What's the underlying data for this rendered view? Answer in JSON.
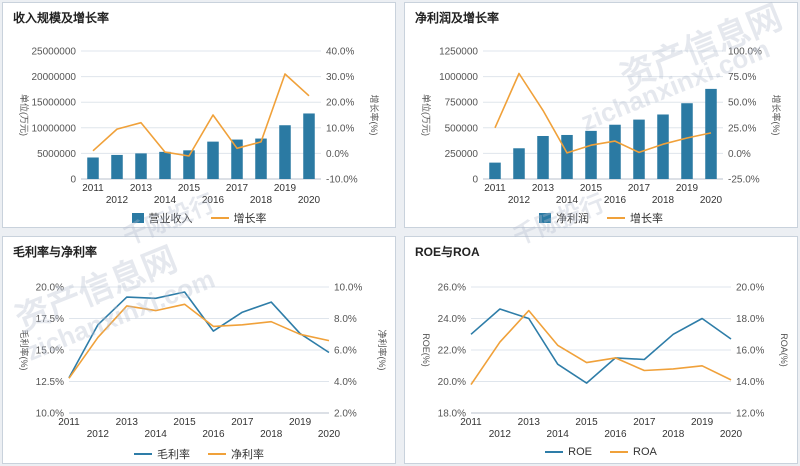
{
  "colors": {
    "bar": "#2b7aa3",
    "line_orange": "#f0a13a",
    "line_blue": "#2e7da8",
    "grid": "#dfe5ec",
    "axis_text": "#555555"
  },
  "watermark": {
    "line1": "资产信息网",
    "line2": "zichanxinxi.com",
    "line3": "千际投行"
  },
  "panels": [
    {
      "title": "收入规模及增长率",
      "legend": [
        "营业收入",
        "增长率"
      ]
    },
    {
      "title": "净利润及增长率",
      "legend": [
        "净利润",
        "增长率"
      ]
    },
    {
      "title": "毛利率与净利率",
      "legend": [
        "毛利率",
        "净利率"
      ]
    },
    {
      "title": "ROE与ROA",
      "legend": [
        "ROE",
        "ROA"
      ]
    }
  ],
  "chart_data": [
    {
      "type": "bar",
      "title": "收入规模及增长率",
      "categories": [
        "2011",
        "2012",
        "2013",
        "2014",
        "2015",
        "2016",
        "2017",
        "2018",
        "2019",
        "2020"
      ],
      "series": [
        {
          "name": "营业收入",
          "type": "bar",
          "axis": "left",
          "values": [
            4200000,
            4700000,
            5000000,
            5300000,
            5600000,
            7300000,
            7700000,
            7900000,
            10500000,
            12800000
          ]
        },
        {
          "name": "增长率",
          "type": "line",
          "axis": "right",
          "values": [
            1.0,
            9.5,
            12.0,
            0.5,
            -1.0,
            15.0,
            2.0,
            4.5,
            31.0,
            22.5
          ]
        }
      ],
      "ylabel": "单位(万元)",
      "ylabel_right": "增长率(%)",
      "ylim": [
        0,
        25000000
      ],
      "ylim_right": [
        -10,
        40
      ],
      "y_ticks": [
        "0",
        "5000000",
        "10000000",
        "15000000",
        "20000000",
        "25000000"
      ],
      "y_ticks_right": [
        "-10.0%",
        "0.0%",
        "10.0%",
        "20.0%",
        "30.0%",
        "40.0%"
      ]
    },
    {
      "type": "bar",
      "title": "净利润及增长率",
      "categories": [
        "2011",
        "2012",
        "2013",
        "2014",
        "2015",
        "2016",
        "2017",
        "2018",
        "2019",
        "2020"
      ],
      "series": [
        {
          "name": "净利润",
          "type": "bar",
          "axis": "left",
          "values": [
            160000,
            300000,
            420000,
            430000,
            470000,
            530000,
            580000,
            630000,
            740000,
            880000
          ]
        },
        {
          "name": "增长率",
          "type": "line",
          "axis": "right",
          "values": [
            25.0,
            78.0,
            42.0,
            0.5,
            8.0,
            12.0,
            1.0,
            9.0,
            15.0,
            20.0
          ]
        }
      ],
      "ylabel": "单位(万元)",
      "ylabel_right": "增长率(%)",
      "ylim": [
        0,
        1250000
      ],
      "ylim_right": [
        -25,
        100
      ],
      "y_ticks": [
        "0",
        "250000",
        "500000",
        "750000",
        "1000000",
        "1250000"
      ],
      "y_ticks_right": [
        "-25.0%",
        "0.0%",
        "25.0%",
        "50.0%",
        "75.0%",
        "100.0%"
      ]
    },
    {
      "type": "line",
      "title": "毛利率与净利率",
      "categories": [
        "2011",
        "2012",
        "2013",
        "2014",
        "2015",
        "2016",
        "2017",
        "2018",
        "2019",
        "2020"
      ],
      "series": [
        {
          "name": "毛利率",
          "axis": "left",
          "values": [
            12.8,
            17.0,
            19.2,
            19.1,
            19.6,
            16.5,
            18.0,
            18.8,
            16.3,
            14.8
          ]
        },
        {
          "name": "净利率",
          "axis": "right",
          "values": [
            4.2,
            6.8,
            8.8,
            8.5,
            8.9,
            7.5,
            7.6,
            7.8,
            7.0,
            6.6
          ]
        }
      ],
      "ylabel": "毛利率(%)",
      "ylabel_right": "净利率(%)",
      "ylim": [
        10,
        20
      ],
      "ylim_right": [
        2,
        10
      ],
      "y_ticks": [
        "10.0%",
        "12.5%",
        "15.0%",
        "17.5%",
        "20.0%"
      ],
      "y_ticks_right": [
        "2.0%",
        "4.0%",
        "6.0%",
        "8.0%",
        "10.0%"
      ]
    },
    {
      "type": "line",
      "title": "ROE与ROA",
      "categories": [
        "2011",
        "2012",
        "2013",
        "2014",
        "2015",
        "2016",
        "2017",
        "2018",
        "2019",
        "2020"
      ],
      "series": [
        {
          "name": "ROE",
          "axis": "left",
          "values": [
            23.0,
            24.6,
            24.0,
            21.1,
            19.9,
            21.5,
            21.4,
            23.0,
            24.0,
            22.7
          ]
        },
        {
          "name": "ROA",
          "axis": "right",
          "values": [
            13.8,
            16.5,
            18.5,
            16.3,
            15.2,
            15.5,
            14.7,
            14.8,
            15.0,
            14.1
          ]
        }
      ],
      "ylabel": "ROE(%)",
      "ylabel_right": "ROA(%)",
      "ylim": [
        18,
        26
      ],
      "ylim_right": [
        12,
        20
      ],
      "y_ticks": [
        "18.0%",
        "20.0%",
        "22.0%",
        "24.0%",
        "26.0%"
      ],
      "y_ticks_right": [
        "12.0%",
        "14.0%",
        "16.0%",
        "18.0%",
        "20.0%"
      ]
    }
  ]
}
